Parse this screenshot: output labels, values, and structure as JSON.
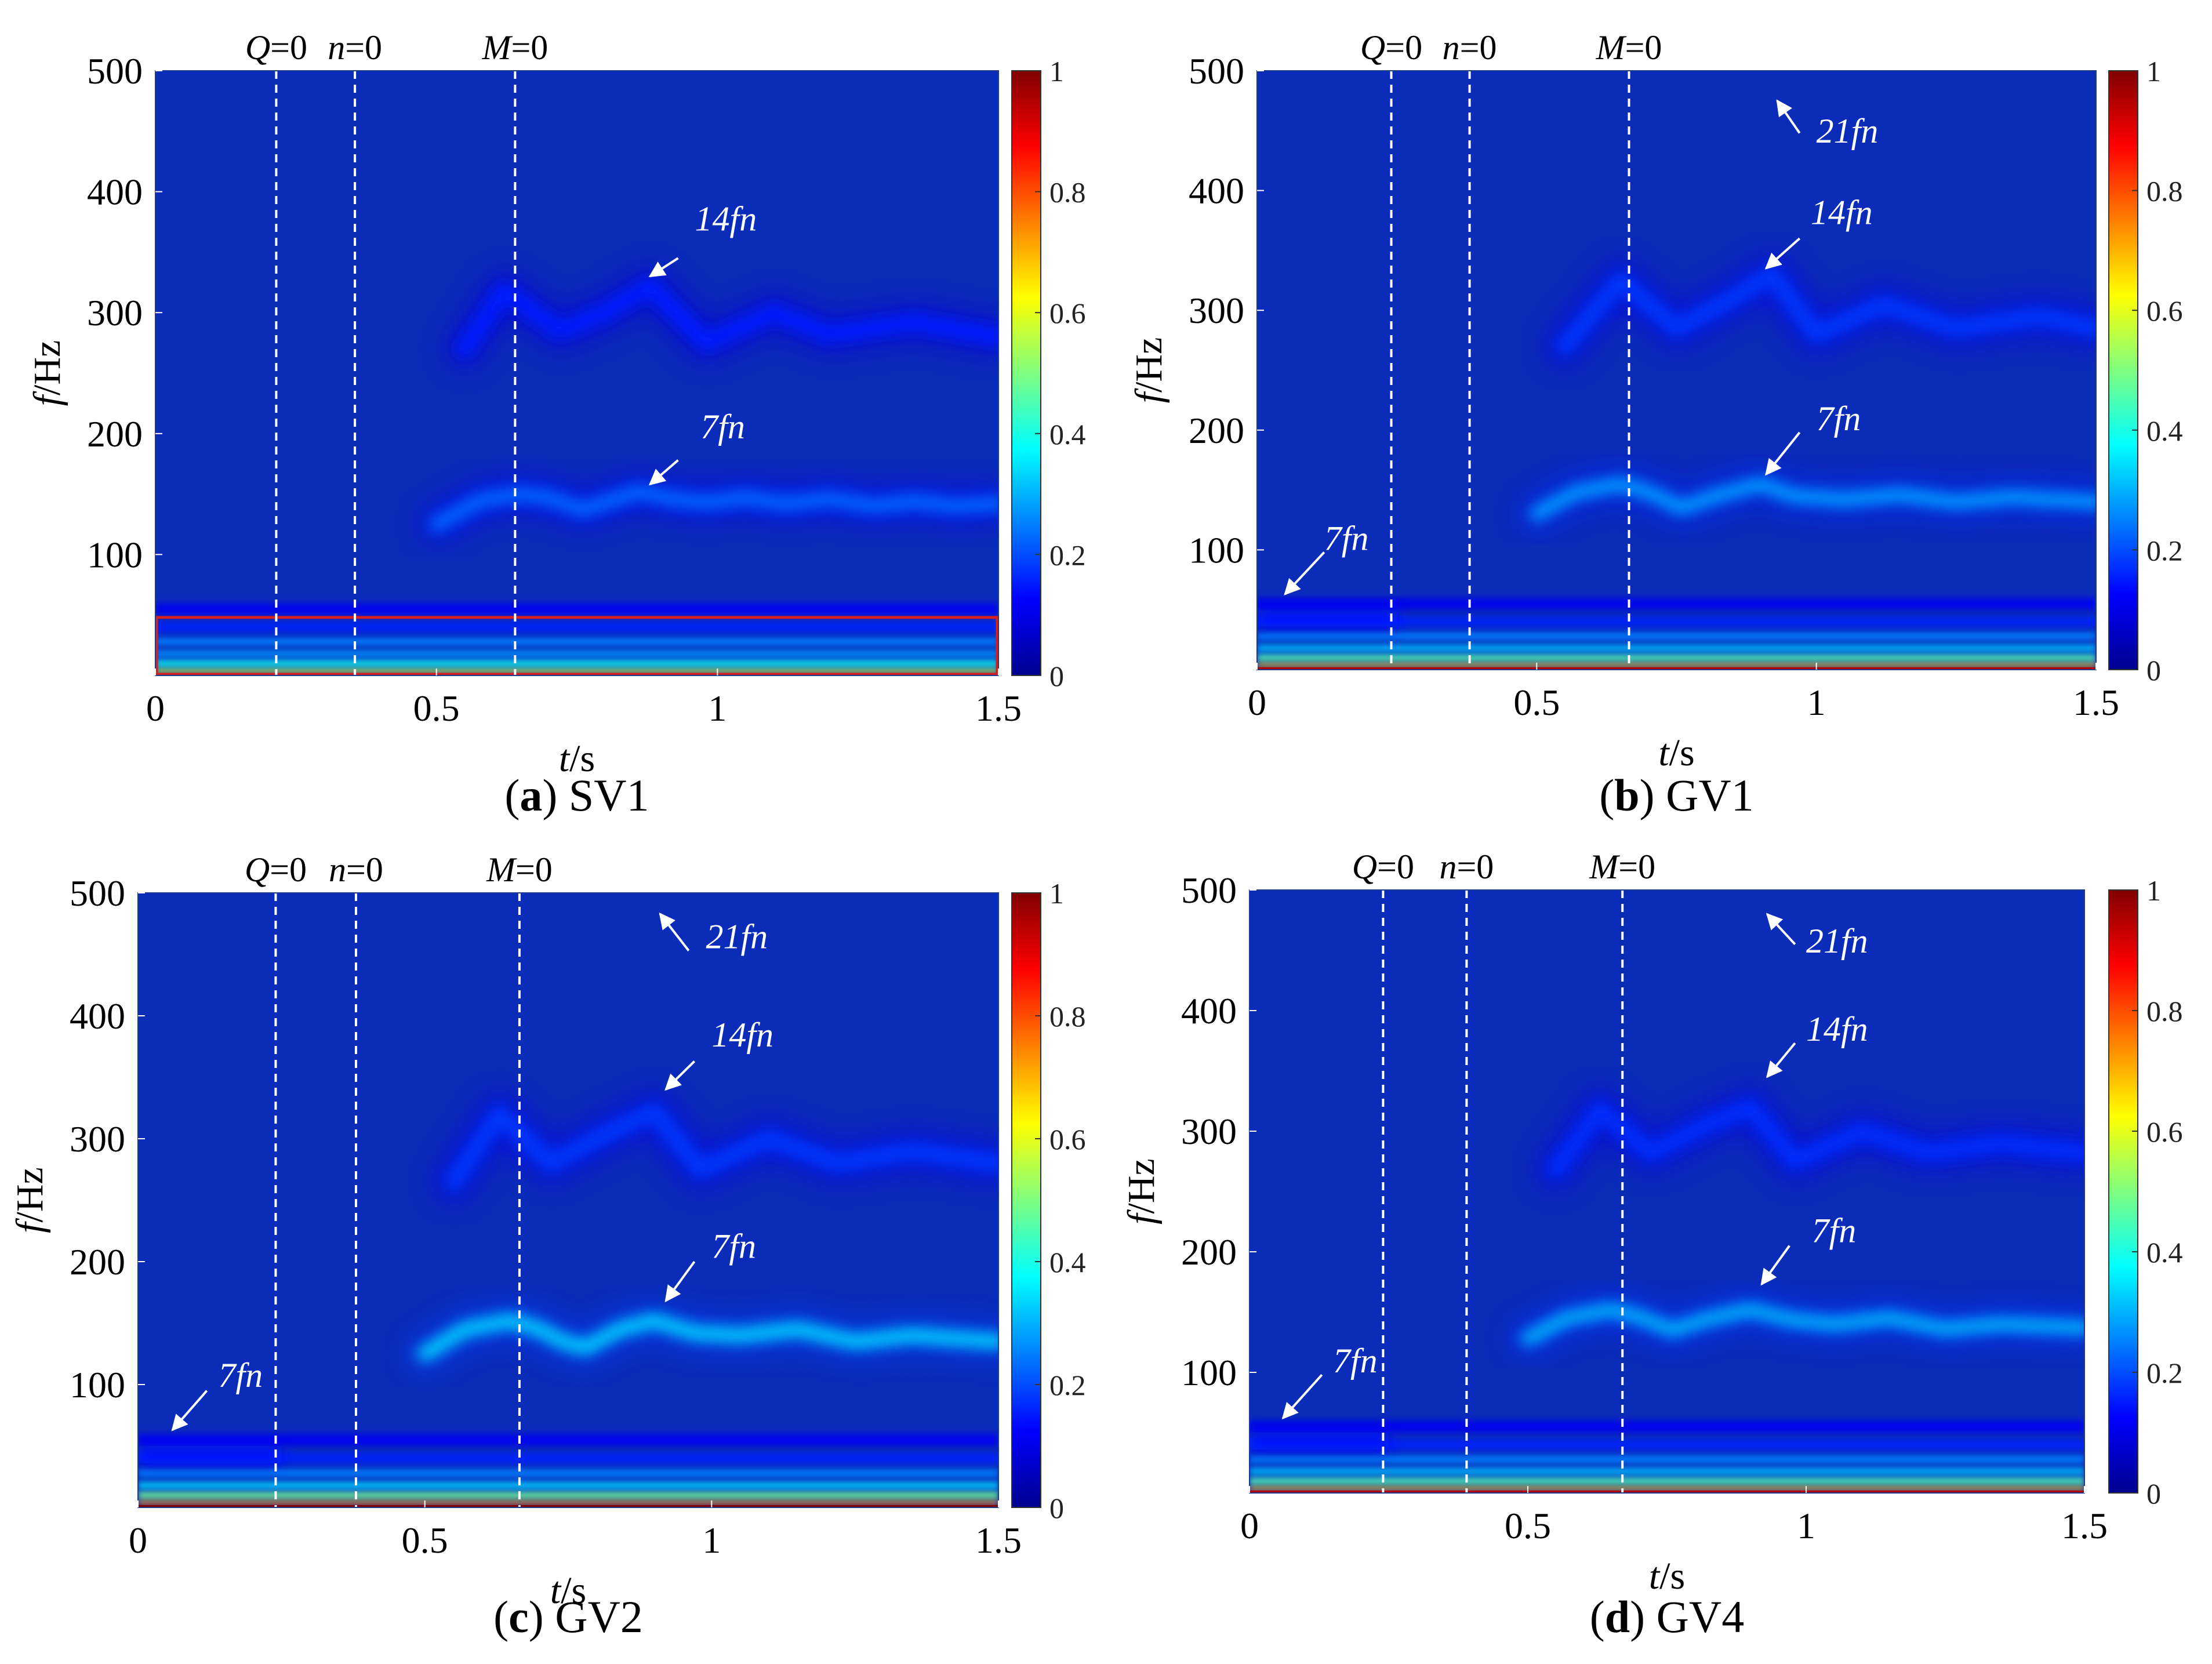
{
  "figure": {
    "colorbar_ticks": [
      "0",
      "0.2",
      "0.4",
      "0.6",
      "0.8",
      "1"
    ],
    "colors": {
      "background": "#0b2cb8",
      "markers": "#ffffff",
      "highlight_box": "#d42020",
      "text": "#000000"
    }
  },
  "chart_data": [
    {
      "type": "heatmap",
      "label_letter": "a",
      "label_name": "SV1",
      "xlabel_var": "t",
      "xlabel_unit": "/s",
      "ylabel_var": "f",
      "ylabel_unit": "/Hz",
      "xlim": [
        0,
        1.5
      ],
      "ylim": [
        0,
        500
      ],
      "xticks": [
        {
          "v": 0,
          "t": "0"
        },
        {
          "v": 0.5,
          "t": "0.5"
        },
        {
          "v": 1,
          "t": "1"
        },
        {
          "v": 1.5,
          "t": "1.5"
        }
      ],
      "yticks": [
        {
          "v": 100,
          "t": "100"
        },
        {
          "v": 200,
          "t": "200"
        },
        {
          "v": 300,
          "t": "300"
        },
        {
          "v": 400,
          "t": "400"
        },
        {
          "v": 500,
          "t": "500"
        }
      ],
      "colorbar_range": [
        0,
        1
      ],
      "event_lines": [
        {
          "t": 0.215,
          "var": "Q",
          "eq": "=0"
        },
        {
          "t": 0.355,
          "var": "n",
          "eq": "=0"
        },
        {
          "t": 0.64,
          "var": "M",
          "eq": "=0"
        }
      ],
      "ridge_7fn": [
        [
          0.5,
          125
        ],
        [
          0.58,
          145
        ],
        [
          0.65,
          150
        ],
        [
          0.7,
          147
        ],
        [
          0.76,
          137
        ],
        [
          0.8,
          143
        ],
        [
          0.86,
          152
        ],
        [
          0.92,
          146
        ],
        [
          0.98,
          143
        ],
        [
          1.05,
          147
        ],
        [
          1.12,
          142
        ],
        [
          1.2,
          146
        ],
        [
          1.28,
          140
        ],
        [
          1.35,
          144
        ],
        [
          1.42,
          140
        ],
        [
          1.5,
          142
        ]
      ],
      "ridge_14fn": [
        [
          0.55,
          270
        ],
        [
          0.62,
          318
        ],
        [
          0.72,
          285
        ],
        [
          0.8,
          300
        ],
        [
          0.88,
          322
        ],
        [
          0.98,
          275
        ],
        [
          1.1,
          300
        ],
        [
          1.2,
          282
        ],
        [
          1.35,
          292
        ],
        [
          1.5,
          280
        ]
      ],
      "ridge_7fn_peak": 0.23,
      "ridge_14fn_peak": 0.05,
      "low_band_strength": 0.6,
      "early_band": false,
      "highlight_box": [
        0,
        48
      ],
      "annotations": [
        {
          "text": "14fn",
          "tail": [
            0.93,
            345
          ],
          "tip": [
            0.88,
            330
          ],
          "label": [
            0.96,
            368
          ]
        },
        {
          "text": "7fn",
          "tail": [
            0.93,
            178
          ],
          "tip": [
            0.88,
            158
          ],
          "label": [
            0.97,
            196
          ]
        }
      ]
    },
    {
      "type": "heatmap",
      "label_letter": "b",
      "label_name": "GV1",
      "xlabel_var": "t",
      "xlabel_unit": "/s",
      "ylabel_var": "f",
      "ylabel_unit": "/Hz",
      "xlim": [
        0,
        1.5
      ],
      "ylim": [
        0,
        500
      ],
      "xticks": [
        {
          "v": 0,
          "t": "0"
        },
        {
          "v": 0.5,
          "t": "0.5"
        },
        {
          "v": 1,
          "t": "1"
        },
        {
          "v": 1.5,
          "t": "1.5"
        }
      ],
      "yticks": [
        {
          "v": 100,
          "t": "100"
        },
        {
          "v": 200,
          "t": "200"
        },
        {
          "v": 300,
          "t": "300"
        },
        {
          "v": 400,
          "t": "400"
        },
        {
          "v": 500,
          "t": "500"
        }
      ],
      "colorbar_range": [
        0,
        1
      ],
      "event_lines": [
        {
          "t": 0.24,
          "var": "Q",
          "eq": "=0"
        },
        {
          "t": 0.38,
          "var": "n",
          "eq": "=0"
        },
        {
          "t": 0.665,
          "var": "M",
          "eq": "=0"
        }
      ],
      "ridge_7fn": [
        [
          0.5,
          130
        ],
        [
          0.57,
          148
        ],
        [
          0.65,
          155
        ],
        [
          0.7,
          148
        ],
        [
          0.76,
          135
        ],
        [
          0.82,
          145
        ],
        [
          0.9,
          155
        ],
        [
          0.96,
          145
        ],
        [
          1.05,
          142
        ],
        [
          1.15,
          146
        ],
        [
          1.25,
          140
        ],
        [
          1.35,
          144
        ],
        [
          1.5,
          140
        ]
      ],
      "ridge_14fn": [
        [
          0.55,
          270
        ],
        [
          0.65,
          325
        ],
        [
          0.75,
          285
        ],
        [
          0.85,
          310
        ],
        [
          0.92,
          330
        ],
        [
          1.0,
          280
        ],
        [
          1.12,
          305
        ],
        [
          1.25,
          285
        ],
        [
          1.4,
          295
        ],
        [
          1.5,
          285
        ]
      ],
      "ridge_7fn_peak": 0.28,
      "ridge_14fn_peak": 0.08,
      "low_band_strength": 0.7,
      "early_band": true,
      "highlight_box": null,
      "annotations": [
        {
          "text": "21fn",
          "tail": [
            0.97,
            448
          ],
          "tip": [
            0.93,
            475
          ],
          "label": [
            1.0,
            440
          ]
        },
        {
          "text": "14fn",
          "tail": [
            0.97,
            360
          ],
          "tip": [
            0.91,
            335
          ],
          "label": [
            0.99,
            372
          ]
        },
        {
          "text": "7fn",
          "tail": [
            0.97,
            198
          ],
          "tip": [
            0.91,
            163
          ],
          "label": [
            1.0,
            200
          ]
        },
        {
          "text": "7fn",
          "tail": [
            0.12,
            98
          ],
          "tip": [
            0.05,
            63
          ],
          "label": [
            0.12,
            100
          ]
        }
      ]
    },
    {
      "type": "heatmap",
      "label_letter": "c",
      "label_name": "GV2",
      "xlabel_var": "t",
      "xlabel_unit": "/s",
      "ylabel_var": "f",
      "ylabel_unit": "/Hz",
      "xlim": [
        0,
        1.5
      ],
      "ylim": [
        0,
        500
      ],
      "xticks": [
        {
          "v": 0,
          "t": "0"
        },
        {
          "v": 0.5,
          "t": "0.5"
        },
        {
          "v": 1,
          "t": "1"
        },
        {
          "v": 1.5,
          "t": "1.5"
        }
      ],
      "yticks": [
        {
          "v": 100,
          "t": "100"
        },
        {
          "v": 200,
          "t": "200"
        },
        {
          "v": 300,
          "t": "300"
        },
        {
          "v": 400,
          "t": "400"
        },
        {
          "v": 500,
          "t": "500"
        }
      ],
      "colorbar_range": [
        0,
        1
      ],
      "event_lines": [
        {
          "t": 0.24,
          "var": "Q",
          "eq": "=0"
        },
        {
          "t": 0.38,
          "var": "n",
          "eq": "=0"
        },
        {
          "t": 0.665,
          "var": "M",
          "eq": "=0"
        }
      ],
      "ridge_7fn": [
        [
          0.5,
          125
        ],
        [
          0.57,
          145
        ],
        [
          0.65,
          152
        ],
        [
          0.7,
          145
        ],
        [
          0.74,
          135
        ],
        [
          0.78,
          130
        ],
        [
          0.84,
          145
        ],
        [
          0.9,
          152
        ],
        [
          0.97,
          142
        ],
        [
          1.05,
          140
        ],
        [
          1.15,
          145
        ],
        [
          1.25,
          135
        ],
        [
          1.35,
          140
        ],
        [
          1.5,
          135
        ]
      ],
      "ridge_14fn": [
        [
          0.55,
          265
        ],
        [
          0.63,
          320
        ],
        [
          0.72,
          280
        ],
        [
          0.82,
          305
        ],
        [
          0.9,
          322
        ],
        [
          0.98,
          275
        ],
        [
          1.1,
          300
        ],
        [
          1.22,
          280
        ],
        [
          1.35,
          290
        ],
        [
          1.5,
          280
        ]
      ],
      "ridge_7fn_peak": 0.33,
      "ridge_14fn_peak": 0.08,
      "low_band_strength": 0.75,
      "early_band": true,
      "highlight_box": null,
      "annotations": [
        {
          "text": "21fn",
          "tail": [
            0.96,
            453
          ],
          "tip": [
            0.91,
            483
          ],
          "label": [
            0.99,
            455
          ]
        },
        {
          "text": "14fn",
          "tail": [
            0.97,
            363
          ],
          "tip": [
            0.92,
            340
          ],
          "label": [
            1.0,
            375
          ]
        },
        {
          "text": "7fn",
          "tail": [
            0.97,
            200
          ],
          "tip": [
            0.92,
            168
          ],
          "label": [
            1.0,
            203
          ]
        },
        {
          "text": "7fn",
          "tail": [
            0.12,
            95
          ],
          "tip": [
            0.06,
            63
          ],
          "label": [
            0.14,
            98
          ]
        }
      ]
    },
    {
      "type": "heatmap",
      "label_letter": "d",
      "label_name": "GV4",
      "xlabel_var": "t",
      "xlabel_unit": "/s",
      "ylabel_var": "f",
      "ylabel_unit": "/Hz",
      "xlim": [
        0,
        1.5
      ],
      "ylim": [
        0,
        500
      ],
      "xticks": [
        {
          "v": 0,
          "t": "0"
        },
        {
          "v": 0.5,
          "t": "0.5"
        },
        {
          "v": 1,
          "t": "1"
        },
        {
          "v": 1.5,
          "t": "1.5"
        }
      ],
      "yticks": [
        {
          "v": 100,
          "t": "100"
        },
        {
          "v": 200,
          "t": "200"
        },
        {
          "v": 300,
          "t": "300"
        },
        {
          "v": 400,
          "t": "400"
        },
        {
          "v": 500,
          "t": "500"
        }
      ],
      "colorbar_range": [
        0,
        1
      ],
      "event_lines": [
        {
          "t": 0.24,
          "var": "Q",
          "eq": "=0"
        },
        {
          "t": 0.39,
          "var": "n",
          "eq": "=0"
        },
        {
          "t": 0.67,
          "var": "M",
          "eq": "=0"
        }
      ],
      "ridge_7fn": [
        [
          0.5,
          128
        ],
        [
          0.57,
          145
        ],
        [
          0.65,
          152
        ],
        [
          0.7,
          146
        ],
        [
          0.76,
          135
        ],
        [
          0.82,
          144
        ],
        [
          0.9,
          152
        ],
        [
          0.97,
          144
        ],
        [
          1.05,
          140
        ],
        [
          1.15,
          145
        ],
        [
          1.25,
          136
        ],
        [
          1.35,
          140
        ],
        [
          1.5,
          137
        ]
      ],
      "ridge_14fn": [
        [
          0.55,
          268
        ],
        [
          0.63,
          318
        ],
        [
          0.72,
          282
        ],
        [
          0.82,
          305
        ],
        [
          0.9,
          320
        ],
        [
          0.98,
          275
        ],
        [
          1.1,
          300
        ],
        [
          1.22,
          282
        ],
        [
          1.35,
          290
        ],
        [
          1.5,
          282
        ]
      ],
      "ridge_7fn_peak": 0.3,
      "ridge_14fn_peak": 0.07,
      "low_band_strength": 0.7,
      "early_band": true,
      "highlight_box": null,
      "annotations": [
        {
          "text": "21fn",
          "tail": [
            0.98,
            455
          ],
          "tip": [
            0.93,
            480
          ],
          "label": [
            1.0,
            448
          ]
        },
        {
          "text": "14fn",
          "tail": [
            0.98,
            373
          ],
          "tip": [
            0.93,
            345
          ],
          "label": [
            1.0,
            375
          ]
        },
        {
          "text": "7fn",
          "tail": [
            0.97,
            205
          ],
          "tip": [
            0.92,
            173
          ],
          "label": [
            1.01,
            208
          ]
        },
        {
          "text": "7fn",
          "tail": [
            0.13,
            98
          ],
          "tip": [
            0.06,
            62
          ],
          "label": [
            0.15,
            100
          ]
        }
      ]
    }
  ]
}
